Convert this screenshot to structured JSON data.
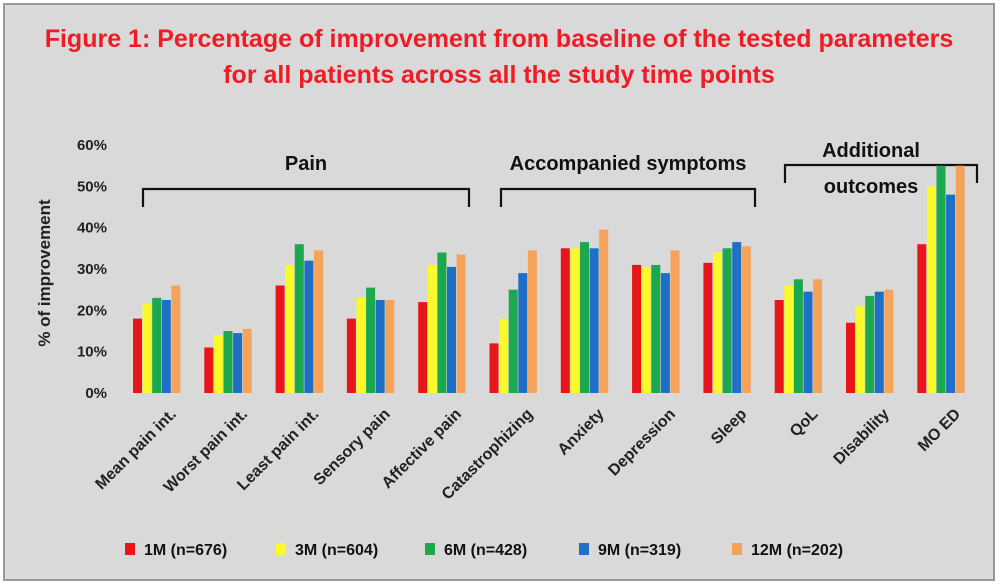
{
  "chart_data": {
    "type": "bar",
    "title_lines": [
      "Figure 1: Percentage of improvement from baseline of the tested parameters",
      "for all patients across all the study time points"
    ],
    "ylabel": "% of improvement",
    "ylim": [
      0,
      60
    ],
    "yticks": [
      "0%",
      "10%",
      "20%",
      "30%",
      "40%",
      "50%",
      "60%"
    ],
    "categories": [
      "Mean pain int.",
      "Worst pain int.",
      "Least pain int.",
      "Sensory pain",
      "Affective pain",
      "Catastrophizing",
      "Anxiety",
      "Depression",
      "Sleep",
      "QoL",
      "Disability",
      "MO ED"
    ],
    "series": [
      {
        "name": "1M (n=676)",
        "color": "#e8151b",
        "values": [
          18,
          11,
          26,
          18,
          22,
          12,
          35,
          31,
          31.5,
          22.5,
          17,
          36
        ]
      },
      {
        "name": "3M (n=604)",
        "color": "#fafa2a",
        "values": [
          21.5,
          14,
          31,
          23,
          31,
          18,
          35,
          30.5,
          34,
          26,
          21,
          50
        ]
      },
      {
        "name": "6M (n=428)",
        "color": "#1ba84e",
        "values": [
          23,
          15,
          36,
          25.5,
          34,
          25,
          36.5,
          31,
          35,
          27.5,
          23.5,
          55
        ]
      },
      {
        "name": "9M (n=319)",
        "color": "#1f6fc6",
        "values": [
          22.5,
          14.5,
          32,
          22.5,
          30.5,
          29,
          35,
          29,
          36.5,
          24.5,
          24.5,
          48
        ]
      },
      {
        "name": "12M (n=202)",
        "color": "#f5a25a",
        "values": [
          26,
          15.5,
          34.5,
          22.5,
          33.5,
          34.5,
          39.5,
          34.5,
          35.5,
          27.5,
          25,
          55
        ]
      }
    ],
    "groups": [
      {
        "label_lines": [
          "Pain"
        ],
        "from": 0,
        "to": 4
      },
      {
        "label_lines": [
          "Accompanied symptoms"
        ],
        "from": 5,
        "to": 8
      },
      {
        "label_lines": [
          "Additional",
          "outcomes"
        ],
        "from": 9,
        "to": 11
      }
    ],
    "grid": false,
    "legend_position": "bottom"
  }
}
